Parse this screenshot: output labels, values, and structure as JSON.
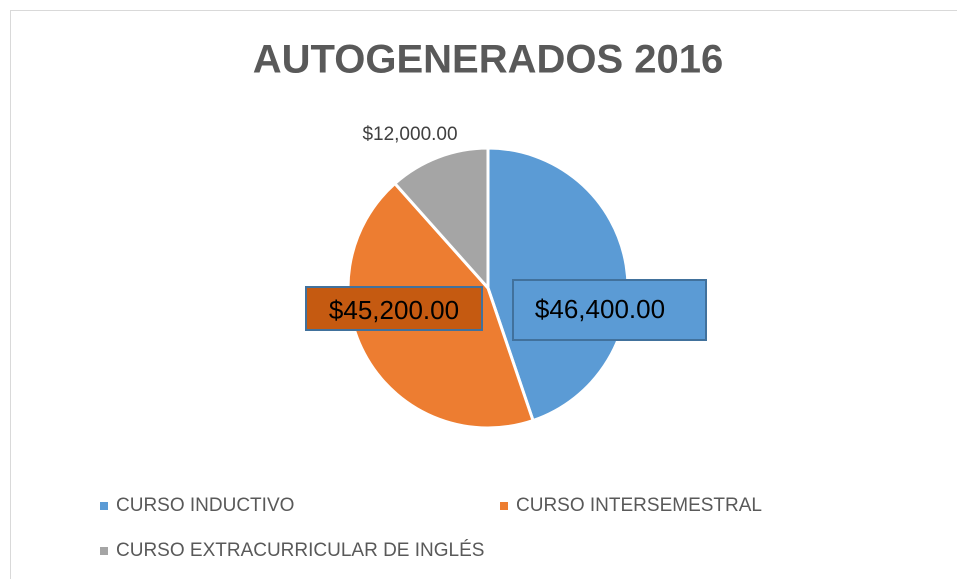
{
  "chart_data": {
    "type": "pie",
    "title": "AUTOGENERADOS 2016",
    "categories": [
      "CURSO INDUCTIVO",
      "CURSO INTERSEMESTRAL",
      "CURSO EXTRACURRICULAR DE INGLÉS"
    ],
    "values": [
      46400,
      45200,
      12000
    ],
    "value_labels": [
      "$46,400.00",
      "$45,200.00",
      "$12,000.00"
    ],
    "colors": [
      "#5b9bd5",
      "#ed7d31",
      "#a5a5a5"
    ],
    "legend": "bottom"
  }
}
